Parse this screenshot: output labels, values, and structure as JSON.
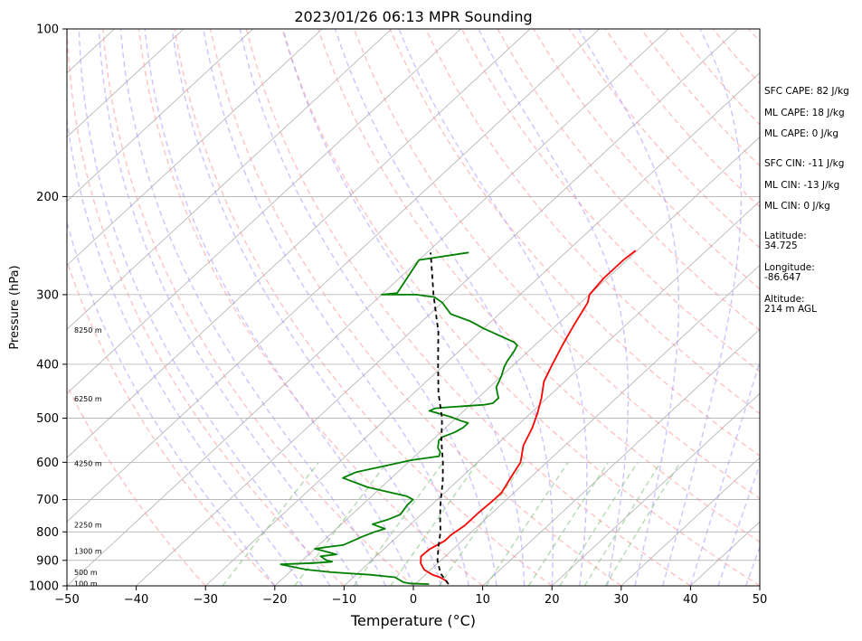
{
  "chart_data": {
    "type": "line",
    "title": "2023/01/26 06:13 MPR Sounding",
    "xlabel": "Temperature (°C)",
    "ylabel": "Pressure (hPa)",
    "xlim": [
      -50,
      50
    ],
    "ylim": [
      1000,
      100
    ],
    "y_scale": "log",
    "grid": true,
    "x_ticks": [
      -50,
      -40,
      -30,
      -20,
      -10,
      0,
      10,
      20,
      30,
      40,
      50
    ],
    "y_ticks": [
      1000,
      900,
      800,
      700,
      600,
      500,
      400,
      300,
      200,
      100
    ],
    "height_labels": [
      {
        "text": "100 m",
        "p": 993
      },
      {
        "text": "500 m",
        "p": 948
      },
      {
        "text": "1300 m",
        "p": 867
      },
      {
        "text": "2250 m",
        "p": 778
      },
      {
        "text": "4250 m",
        "p": 604
      },
      {
        "text": "6250 m",
        "p": 462
      },
      {
        "text": "8250 m",
        "p": 348
      }
    ],
    "series": [
      {
        "color": "#ff0000",
        "points": [
          [
            4.8,
            993
          ],
          [
            4.0,
            980
          ],
          [
            2.5,
            965
          ],
          [
            1.0,
            955
          ],
          [
            -1.0,
            935
          ],
          [
            -2.5,
            910
          ],
          [
            -3.5,
            885
          ],
          [
            -3.4,
            860
          ],
          [
            -2.5,
            830
          ],
          [
            -2.5,
            810
          ],
          [
            -2.0,
            780
          ],
          [
            -2.0,
            760
          ],
          [
            -2.0,
            740
          ],
          [
            -1.8,
            700
          ],
          [
            -1.8,
            680
          ],
          [
            -2.8,
            640
          ],
          [
            -3.8,
            600
          ],
          [
            -6.0,
            560
          ],
          [
            -7.5,
            520
          ],
          [
            -9.0,
            490
          ],
          [
            -10.8,
            460
          ],
          [
            -13.0,
            430
          ],
          [
            -14.5,
            400
          ],
          [
            -16.0,
            370
          ],
          [
            -17.5,
            340
          ],
          [
            -19.0,
            310
          ],
          [
            -20.0,
            300
          ],
          [
            -20.5,
            280
          ],
          [
            -20.5,
            260
          ],
          [
            -20.2,
            250
          ]
        ]
      },
      {
        "color": "#008000",
        "points": [
          [
            2.0,
            993
          ],
          [
            -1.0,
            990
          ],
          [
            -2.0,
            985
          ],
          [
            -4.0,
            965
          ],
          [
            -8.0,
            955
          ],
          [
            -14.0,
            945
          ],
          [
            -18.0,
            935
          ],
          [
            -22.5,
            915
          ],
          [
            -18.0,
            910
          ],
          [
            -15.5,
            905
          ],
          [
            -16.5,
            900
          ],
          [
            -18.0,
            885
          ],
          [
            -16.0,
            878
          ],
          [
            -18.5,
            865
          ],
          [
            -20.0,
            858
          ],
          [
            -18.0,
            850
          ],
          [
            -16.5,
            845
          ],
          [
            -16.0,
            835
          ],
          [
            -15.0,
            815
          ],
          [
            -14.0,
            800
          ],
          [
            -13.0,
            790
          ],
          [
            -15.5,
            775
          ],
          [
            -14.0,
            760
          ],
          [
            -13.0,
            745
          ],
          [
            -13.5,
            715
          ],
          [
            -13.5,
            700
          ],
          [
            -15.0,
            690
          ],
          [
            -22.0,
            665
          ],
          [
            -27.0,
            640
          ],
          [
            -26.0,
            625
          ],
          [
            -23.0,
            610
          ],
          [
            -20.0,
            595
          ],
          [
            -16.5,
            585
          ],
          [
            -17.0,
            575
          ],
          [
            -18.0,
            565
          ],
          [
            -19.0,
            548
          ],
          [
            -19.0,
            540
          ],
          [
            -18.0,
            530
          ],
          [
            -17.5,
            520
          ],
          [
            -17.5,
            510
          ],
          [
            -19.0,
            505
          ],
          [
            -21.0,
            497
          ],
          [
            -25.0,
            485
          ],
          [
            -24.5,
            480
          ],
          [
            -23.0,
            478
          ],
          [
            -18.0,
            473
          ],
          [
            -17.0,
            470
          ],
          [
            -17.0,
            460
          ],
          [
            -18.0,
            450
          ],
          [
            -19.0,
            440
          ],
          [
            -20.0,
            420
          ],
          [
            -21.0,
            405
          ],
          [
            -21.5,
            395
          ],
          [
            -22.0,
            380
          ],
          [
            -22.5,
            370
          ],
          [
            -23.5,
            365
          ],
          [
            -30.0,
            345
          ],
          [
            -33.0,
            335
          ],
          [
            -37.0,
            325
          ],
          [
            -40.0,
            310
          ],
          [
            -42.0,
            303
          ],
          [
            -45.0,
            300
          ],
          [
            -50.0,
            300
          ],
          [
            -48.0,
            298
          ],
          [
            -50.0,
            260
          ],
          [
            -44.0,
            252
          ]
        ]
      },
      {
        "color": "#000000",
        "dashed": true,
        "points": [
          [
            4.8,
            993
          ],
          [
            2.0,
            950
          ],
          [
            -0.5,
            900
          ],
          [
            -2.5,
            850
          ],
          [
            -4.5,
            800
          ],
          [
            -7.0,
            750
          ],
          [
            -9.5,
            700
          ],
          [
            -12.0,
            650
          ],
          [
            -15.0,
            600
          ],
          [
            -18.5,
            550
          ],
          [
            -22.0,
            500
          ],
          [
            -26.5,
            450
          ],
          [
            -31.0,
            400
          ],
          [
            -36.0,
            350
          ],
          [
            -42.5,
            300
          ],
          [
            -49.5,
            252
          ]
        ]
      }
    ],
    "annotations": [
      "SFC CAPE: 82 J/kg",
      "ML CAPE: 18 J/kg",
      "ML CAPE: 0 J/kg",
      "SFC CIN: -11 J/kg",
      "ML CIN: -13 J/kg",
      "ML CIN: 0 J/kg",
      "Latitude:",
      "34.725",
      "Longitude:",
      "-86.647",
      "Altitude:",
      "214 m AGL"
    ],
    "colors": {
      "isotherm": "#b0b0b0",
      "dry_adiabat": "#ff9090",
      "moist_adiabat": "#9a8aff",
      "mixing_ratio": "#7fc37f"
    }
  }
}
